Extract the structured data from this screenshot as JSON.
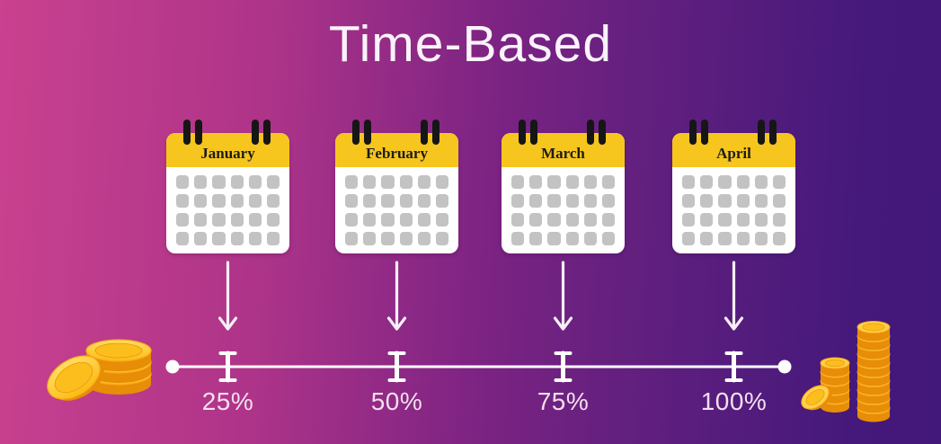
{
  "title": "Time-Based",
  "milestones": [
    {
      "month": "January",
      "percent": "25%"
    },
    {
      "month": "February",
      "percent": "50%"
    },
    {
      "month": "March",
      "percent": "75%"
    },
    {
      "month": "April",
      "percent": "100%"
    }
  ],
  "colors": {
    "background_left": "#c9418f",
    "background_mid": "#7c2383",
    "background_right": "#42187a",
    "calendar_header": "#f6c51e",
    "calendar_body": "#ffffff",
    "calendar_cell": "#c3c3c3",
    "binder_ring": "#161616",
    "timeline": "#ffffff",
    "title_text": "#faf3fb",
    "month_text": "#1c1c1c",
    "percent_text": "#f4dfee",
    "coin_gold": "#fdc226",
    "coin_side": "#e78d07"
  }
}
